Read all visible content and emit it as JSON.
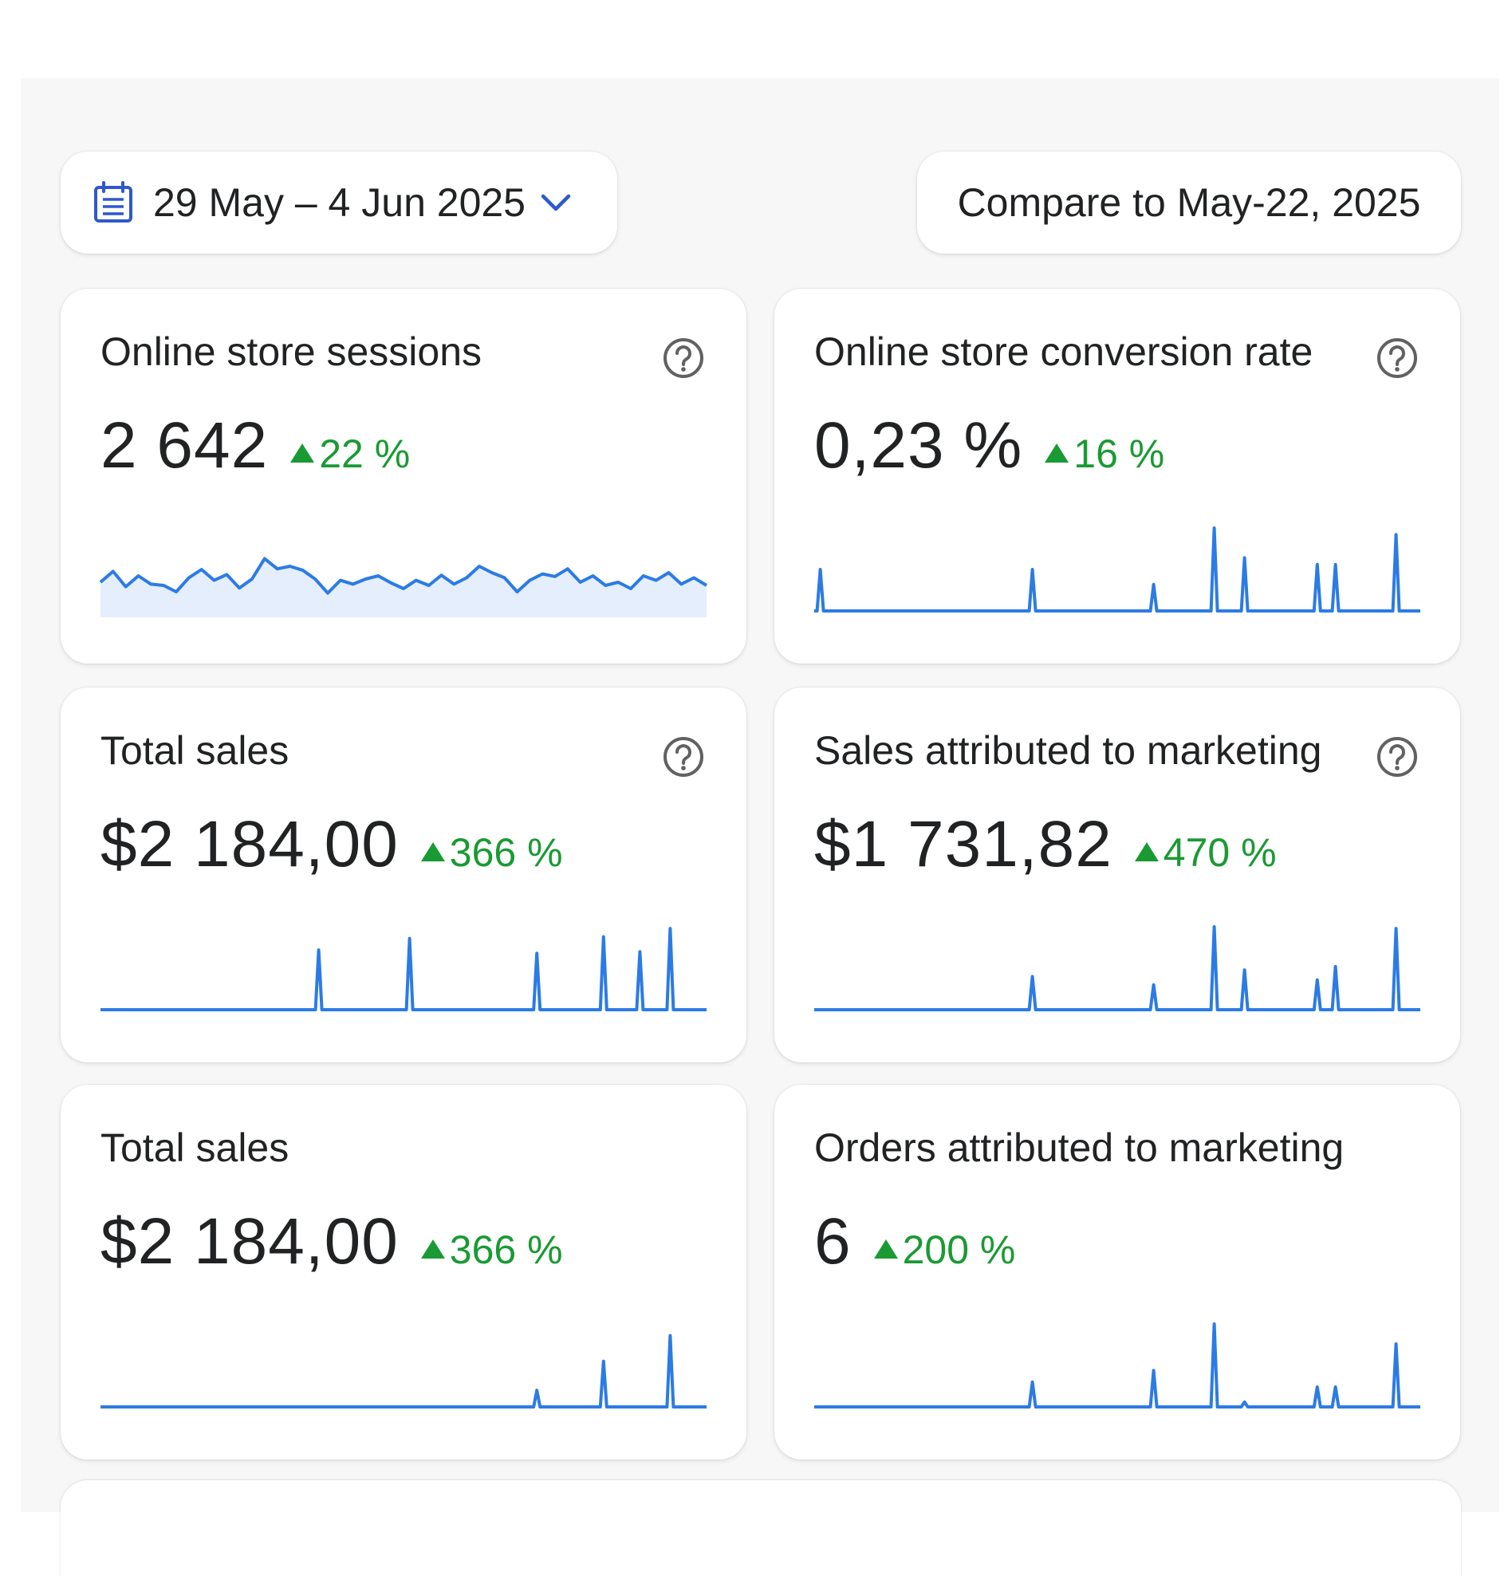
{
  "toolbar": {
    "date_range": "29 May – 4 Jun 2025",
    "calendar_icon": "calendar-icon",
    "chevron_icon": "chevron-down-icon",
    "compare_label": "Compare to May-22, 2025"
  },
  "colors": {
    "accent": "#2c7be5",
    "positive": "#1a9a33",
    "sparkline_fill": "#e4eefc"
  },
  "cards": [
    {
      "title": "Online store sessions",
      "value": "2 642",
      "delta": "22 %",
      "help": true,
      "spark_type": "area",
      "spark": [
        0.45,
        0.62,
        0.38,
        0.55,
        0.42,
        0.4,
        0.3,
        0.52,
        0.65,
        0.48,
        0.57,
        0.36,
        0.5,
        0.82,
        0.66,
        0.7,
        0.64,
        0.5,
        0.28,
        0.48,
        0.42,
        0.5,
        0.55,
        0.44,
        0.35,
        0.48,
        0.4,
        0.56,
        0.42,
        0.52,
        0.7,
        0.6,
        0.52,
        0.3,
        0.48,
        0.58,
        0.54,
        0.66,
        0.45,
        0.55,
        0.4,
        0.45,
        0.35,
        0.55,
        0.48,
        0.6,
        0.42,
        0.52,
        0.4
      ]
    },
    {
      "title": "Online store conversion rate",
      "value": "0,23 %",
      "delta": "16 %",
      "help": true,
      "spark_type": "spikes",
      "spark_len": 100,
      "spikes": [
        [
          1,
          0.5
        ],
        [
          36,
          0.5
        ],
        [
          56,
          0.32
        ],
        [
          66,
          1.0
        ],
        [
          71,
          0.64
        ],
        [
          83,
          0.56
        ],
        [
          86,
          0.56
        ],
        [
          96,
          0.92
        ]
      ]
    },
    {
      "title": "Total sales",
      "value": "$2 184,00",
      "delta": "366 %",
      "help": true,
      "spark_type": "spikes",
      "spark_len": 100,
      "spikes": [
        [
          36,
          0.72
        ],
        [
          51,
          0.86
        ],
        [
          72,
          0.68
        ],
        [
          83,
          0.88
        ],
        [
          89,
          0.7
        ],
        [
          94,
          0.98
        ]
      ]
    },
    {
      "title": "Sales attributed to marketing",
      "value": "$1 731,82",
      "delta": "470 %",
      "help": true,
      "spark_type": "spikes",
      "spark_len": 100,
      "spikes": [
        [
          36,
          0.4
        ],
        [
          56,
          0.3
        ],
        [
          66,
          1.0
        ],
        [
          71,
          0.48
        ],
        [
          83,
          0.36
        ],
        [
          86,
          0.52
        ],
        [
          96,
          0.98
        ]
      ]
    },
    {
      "title": "Total sales",
      "value": "$2 184,00",
      "delta": "366 %",
      "help": false,
      "spark_type": "spikes",
      "spark_len": 100,
      "spikes": [
        [
          72,
          0.2
        ],
        [
          83,
          0.55
        ],
        [
          94,
          0.86
        ]
      ]
    },
    {
      "title": "Orders attributed to marketing",
      "value": "6",
      "delta": "200 %",
      "help": false,
      "spark_type": "spikes",
      "spark_len": 100,
      "spikes": [
        [
          36,
          0.3
        ],
        [
          56,
          0.44
        ],
        [
          66,
          1.0
        ],
        [
          71,
          0.06
        ],
        [
          83,
          0.24
        ],
        [
          86,
          0.24
        ],
        [
          96,
          0.76
        ]
      ]
    }
  ]
}
